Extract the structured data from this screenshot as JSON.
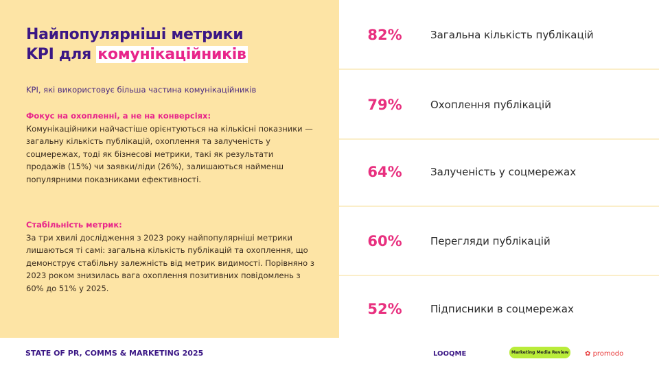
{
  "header": {
    "title_line1": "Найпопулярніші метрики",
    "title_prefix": "KPI для",
    "title_highlight": "комунікаційників"
  },
  "subtitle": "KPI, які використовує більша частина комунікаційників",
  "sections": [
    {
      "heading": "Фокус на охопленні, а не на конверсіях:",
      "body": "Комунікаційники найчастіше орієнтуються на кількісні показники — загальну кількість публікацій, охоплення та залученість у соцмережах, тоді як бізнесові метрики, такі як результати продажів (15%) чи заявки/ліди (26%), залишаються найменш популярними показниками ефективності."
    },
    {
      "heading": "Стабільність метрик:",
      "body": "За три хвилі дослідження з 2023 року найпопулярніші метрики лишаються ті самі: загальна кількість публікацій та охоплення, що демонструє стабільну залежність від метрик видимості. Порівняно з 2023 роком знизилась вага охоплення позитивних повідомлень з 60% до 51% у 2025."
    }
  ],
  "metrics": [
    {
      "value": "82%",
      "label": "Загальна кількість публікацій"
    },
    {
      "value": "79%",
      "label": "Охоплення публікацій"
    },
    {
      "value": "64%",
      "label": "Залученість у соцмережах"
    },
    {
      "value": "60%",
      "label": "Перегляди публікацій"
    },
    {
      "value": "52%",
      "label": "Підписники в соцмережах"
    }
  ],
  "footer": {
    "text": "STATE OF PR, COMMS & MARKETING 2025",
    "logos": [
      "LOOQME",
      "Marketing Media Review",
      "promodo"
    ]
  },
  "colors": {
    "accent": "#e8307f",
    "title": "#3b1785",
    "panel": "#fde4a5"
  }
}
